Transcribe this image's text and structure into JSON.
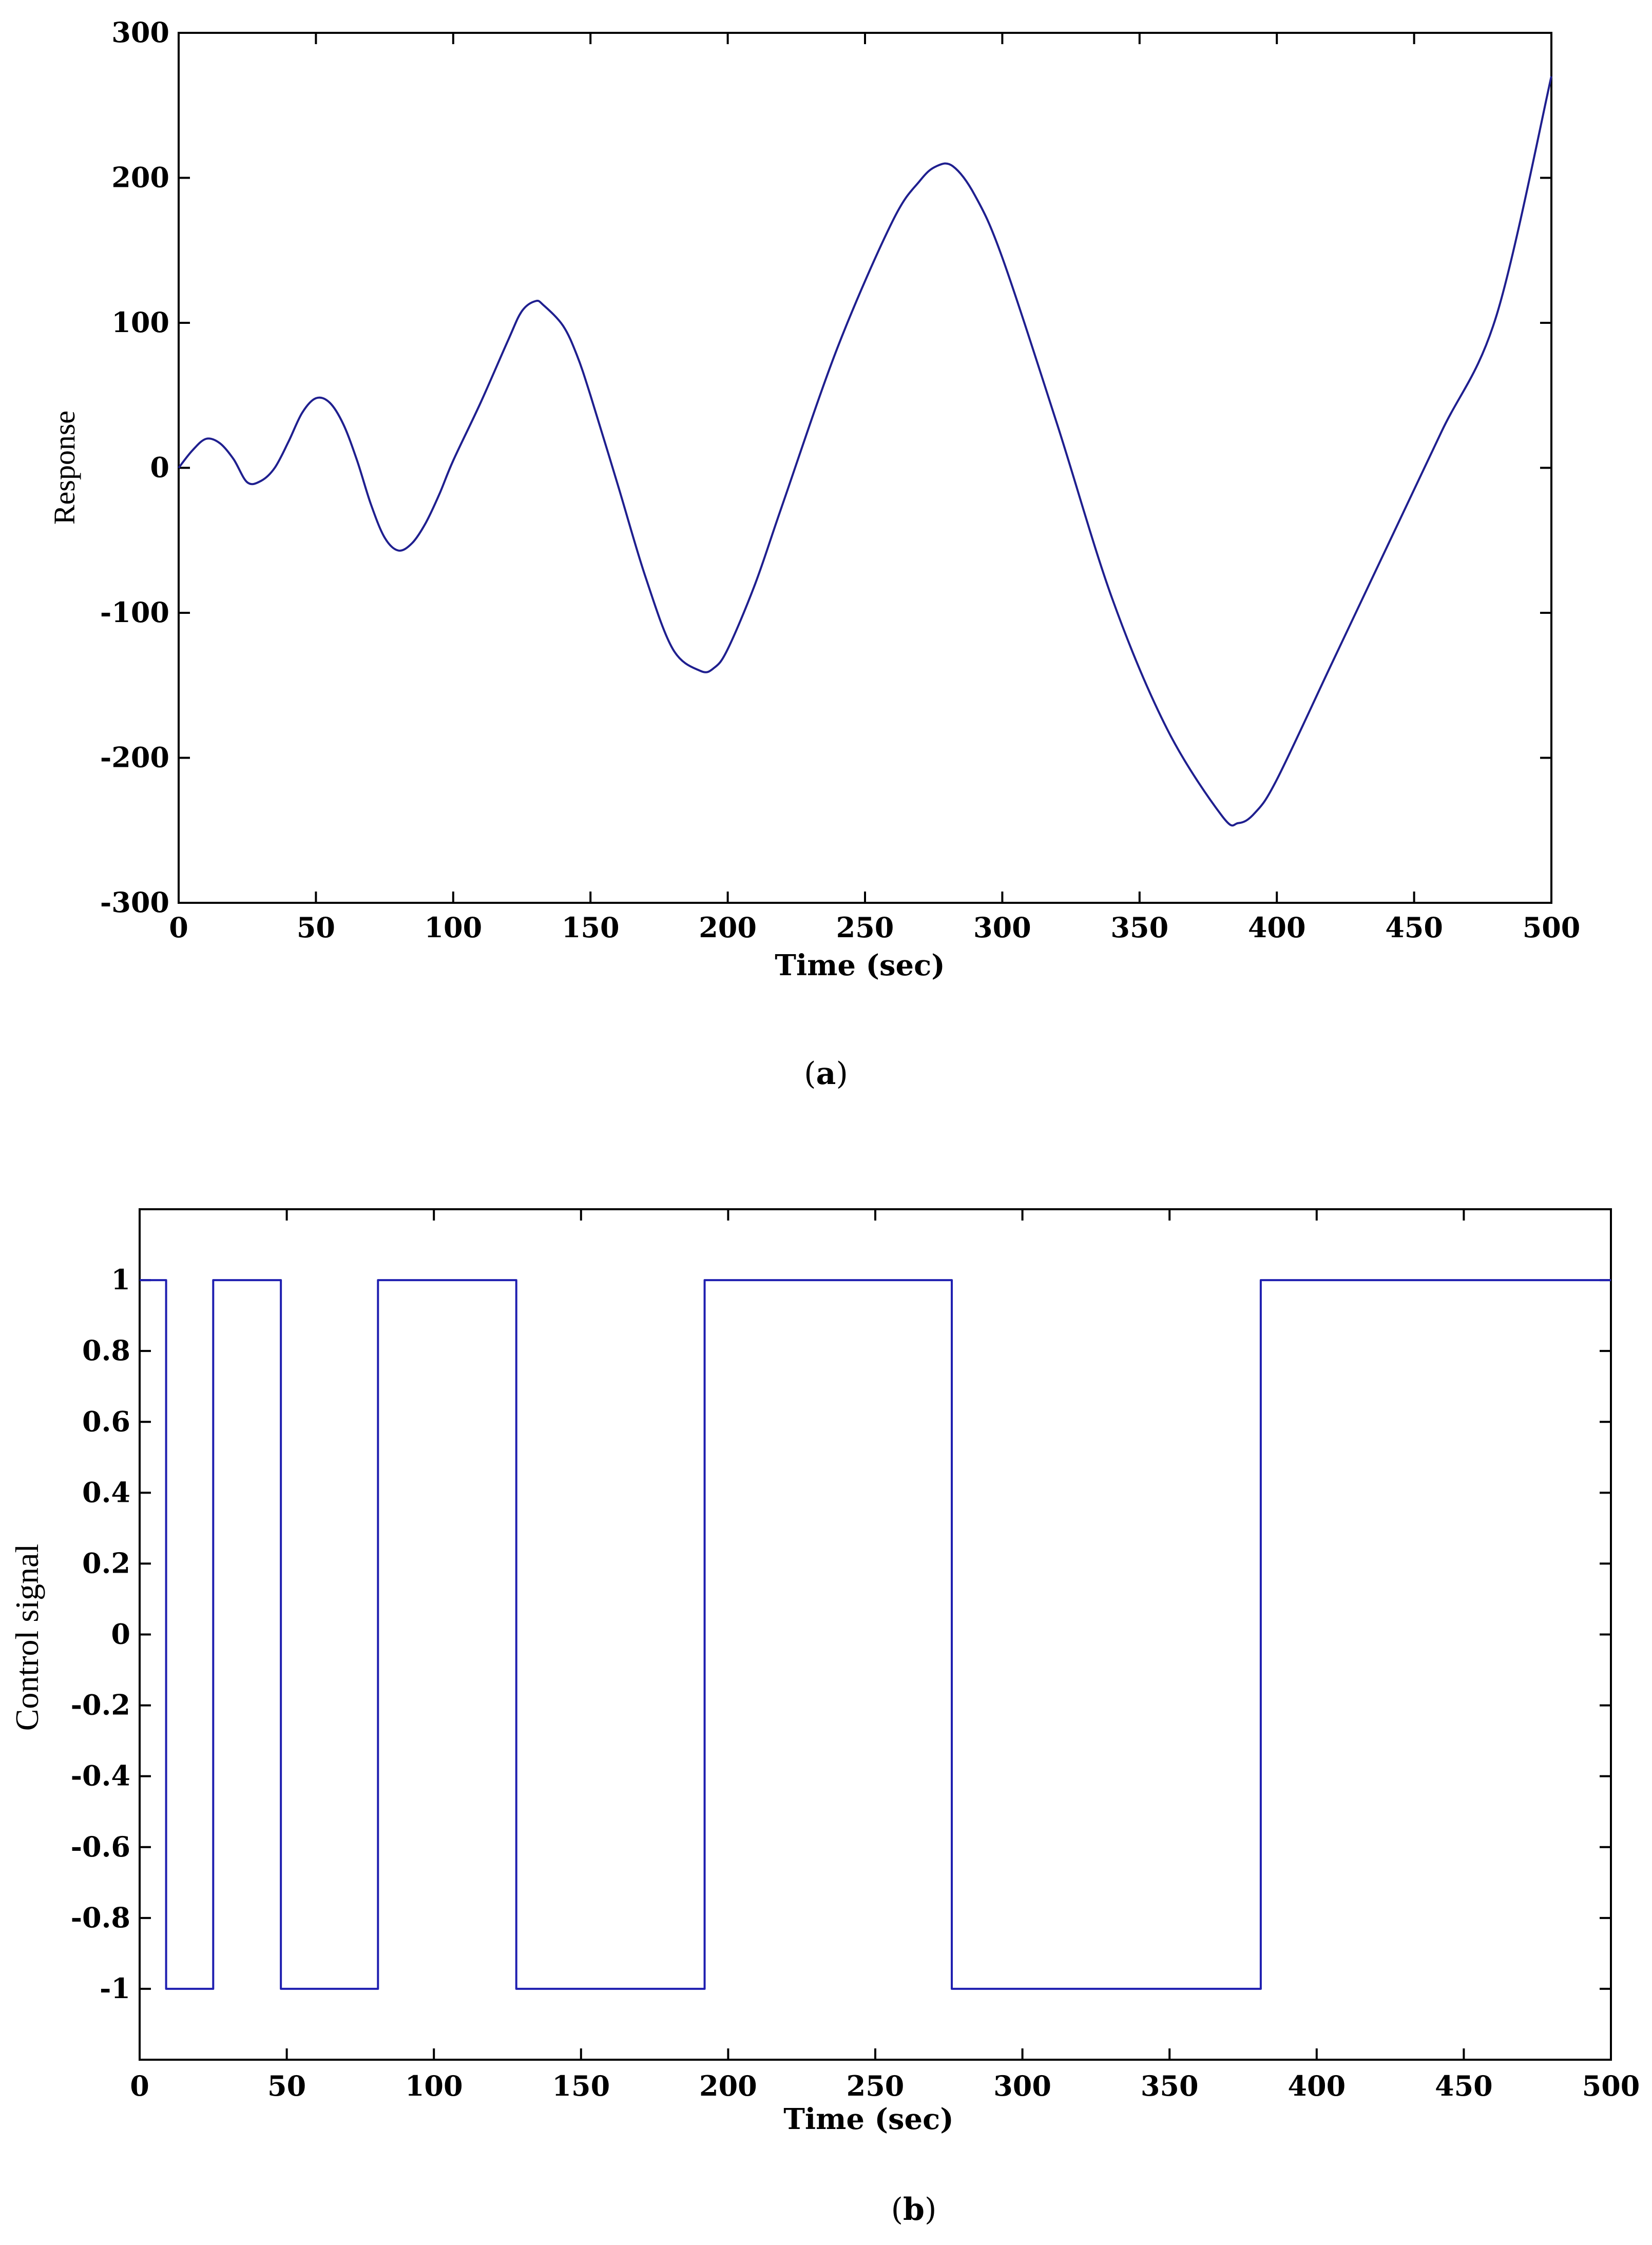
{
  "chart_data": [
    {
      "type": "line",
      "panel_caption": "a",
      "title": "",
      "xlabel": "Time (sec)",
      "ylabel": "Response",
      "xlim": [
        0,
        500
      ],
      "ylim": [
        -300,
        300
      ],
      "xticks": [
        0,
        50,
        100,
        150,
        200,
        250,
        300,
        350,
        400,
        450,
        500
      ],
      "yticks": [
        -300,
        -200,
        -100,
        0,
        100,
        200,
        300
      ],
      "ytick_labels": [
        "-300",
        "-200",
        "-100",
        "0",
        "100",
        "200",
        "300"
      ],
      "grid": false,
      "line_color": "#1f1f8f",
      "series": [
        {
          "x": [
            0,
            5,
            10,
            15,
            20,
            25,
            30,
            35,
            40,
            45,
            50,
            55,
            60,
            65,
            70,
            75,
            80,
            85,
            90,
            95,
            100,
            110,
            120,
            125,
            130,
            133,
            140,
            145,
            150,
            160,
            170,
            180,
            190,
            195,
            200,
            210,
            220,
            240,
            260,
            270,
            276,
            282,
            290,
            300,
            320,
            340,
            360,
            380,
            386,
            392,
            400,
            420,
            440,
            460,
            480,
            500
          ],
          "y": [
            0,
            12,
            20,
            17,
            6,
            -10,
            -9,
            0,
            18,
            38,
            48,
            45,
            30,
            5,
            -25,
            -48,
            -57,
            -52,
            -38,
            -18,
            5,
            45,
            88,
            108,
            115,
            112,
            98,
            78,
            50,
            -12,
            -75,
            -125,
            -140,
            -138,
            -125,
            -80,
            -25,
            83,
            170,
            198,
            208,
            208,
            188,
            145,
            30,
            -90,
            -180,
            -240,
            -245,
            -238,
            -215,
            -135,
            -55,
            25,
            105,
            270
          ]
        }
      ]
    },
    {
      "type": "line",
      "panel_caption": "b",
      "title": "",
      "xlabel": "Time (sec)",
      "ylabel": "Control signal",
      "xlim": [
        0,
        500
      ],
      "ylim": [
        -1.2,
        1.2
      ],
      "xticks": [
        0,
        50,
        100,
        150,
        200,
        250,
        300,
        350,
        400,
        450,
        500
      ],
      "yticks": [
        -1,
        -0.8,
        -0.6,
        -0.4,
        -0.2,
        0,
        0.2,
        0.4,
        0.6,
        0.8,
        1
      ],
      "ytick_labels": [
        "-1",
        "-0.8",
        "-0.6",
        "-0.4",
        "-0.2",
        "0",
        "0.2",
        "0.4",
        "0.6",
        "0.8",
        "1"
      ],
      "grid": false,
      "line_color": "#1f1fb0",
      "series": [
        {
          "step": "post",
          "x": [
            0,
            9,
            25,
            48,
            81,
            128,
            192,
            276,
            381,
            500
          ],
          "y": [
            1,
            -1,
            1,
            -1,
            1,
            -1,
            1,
            -1,
            1,
            1
          ]
        }
      ]
    }
  ]
}
